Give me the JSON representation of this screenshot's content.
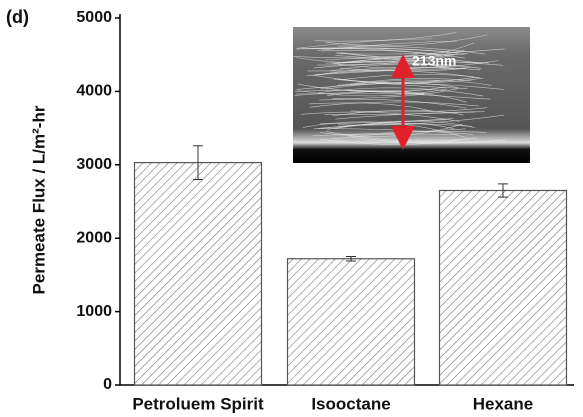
{
  "chart_data": {
    "type": "bar",
    "panel_label": "(d)",
    "y_label": "Permeate Flux / L/m²-hr",
    "categories": [
      "Petroluem Spirit",
      "Isooctane",
      "Hexane"
    ],
    "values": [
      3030,
      1720,
      2650
    ],
    "errors": [
      230,
      30,
      90
    ],
    "color": "#555555",
    "ylim": [
      0,
      5000
    ],
    "yticks": [
      0,
      1000,
      2000,
      3000,
      4000,
      5000
    ],
    "annotation": "213nm"
  }
}
